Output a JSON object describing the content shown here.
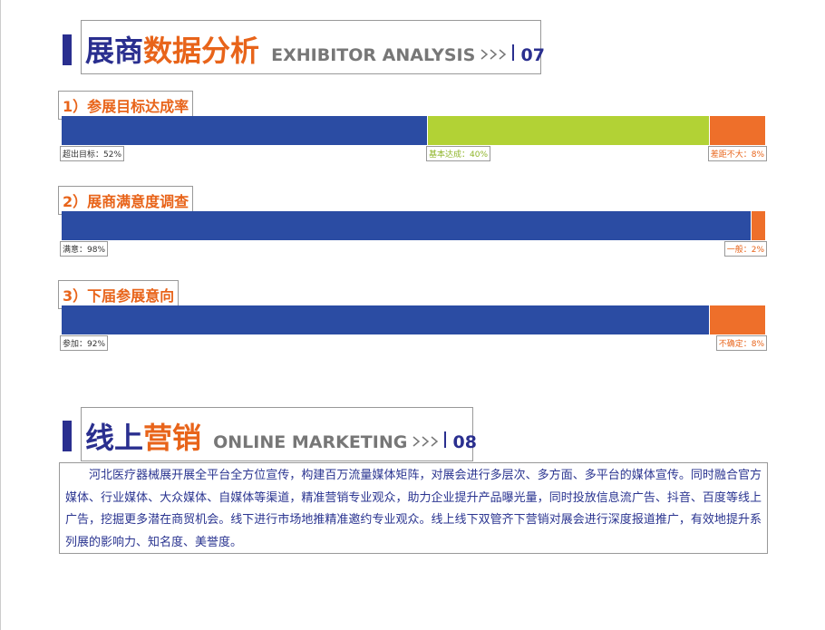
{
  "sections": [
    {
      "title_cn_1": "展商",
      "title_cn_2": "数据分析",
      "title_en": "EXHIBITOR ANALYSIS",
      "number": "07",
      "charts": [
        {
          "title": "1）参展目标达成率",
          "segments": [
            {
              "label": "超出目标：52%",
              "value": 52,
              "color": "#2b4ca3",
              "label_color": "#333333"
            },
            {
              "label": "基本达成：40%",
              "value": 40,
              "color": "#b2d235",
              "label_color": "#8fb52a"
            },
            {
              "label": "差距不大：8%",
              "value": 8,
              "color": "#ee6f2a",
              "label_color": "#e8641a"
            }
          ]
        },
        {
          "title": "2）展商满意度调查",
          "segments": [
            {
              "label": "满意：98%",
              "value": 98,
              "color": "#2b4ca3",
              "label_color": "#333333"
            },
            {
              "label": "一般：2%",
              "value": 2,
              "color": "#ee6f2a",
              "label_color": "#e8641a"
            }
          ]
        },
        {
          "title": "3）下届参展意向",
          "segments": [
            {
              "label": "参加：92%",
              "value": 92,
              "color": "#2b4ca3",
              "label_color": "#333333"
            },
            {
              "label": "不确定：8%",
              "value": 8,
              "color": "#ee6f2a",
              "label_color": "#e8641a"
            }
          ]
        }
      ]
    },
    {
      "title_cn_1": "线上",
      "title_cn_2": "营销",
      "title_en": "ONLINE MARKETING",
      "number": "08",
      "paragraph": "河北医疗器械展开展全平台全方位宣传，构建百万流量媒体矩阵，对展会进行多层次、多方面、多平台的媒体宣传。同时融合官方媒体、行业媒体、大众媒体、自媒体等渠道，精准营销专业观众，助力企业提升产品曝光量，同时投放信息流广告、抖音、百度等线上广告，挖掘更多潜在商贸机会。线下进行市场地推精准邀约专业观众。线上线下双管齐下营销对展会进行深度报道推广，有效地提升系列展的影响力、知名度、美誉度。"
    }
  ]
}
